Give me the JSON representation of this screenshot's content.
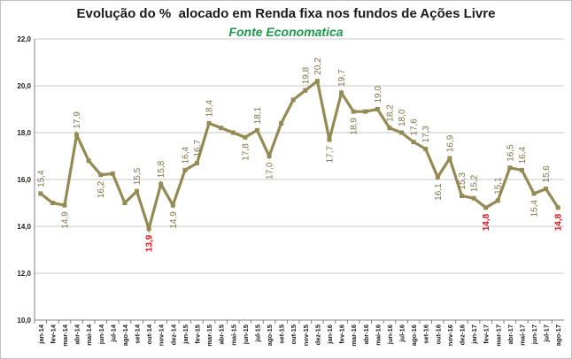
{
  "chart_data": {
    "type": "line",
    "title": "Evolução do %  alocado em Renda fixa nos fundos de Ações Livre",
    "subtitle": "Fonte Economatica",
    "xlabel": "",
    "ylabel": "",
    "ylim": [
      10,
      22
    ],
    "y_ticks": [
      "10,0",
      "12,0",
      "14,0",
      "16,0",
      "18,0",
      "20,0",
      "22,0"
    ],
    "grid": true,
    "legend": "none",
    "line_color": "#948a54",
    "label_color": "#7f7346",
    "highlight_color": "#e8101a",
    "categories": [
      "jan-14",
      "fev-14",
      "mar-14",
      "abr-14",
      "mai-14",
      "jun-14",
      "jul-14",
      "ago-14",
      "set-14",
      "out-14",
      "nov-14",
      "dez-14",
      "jan-15",
      "fev-15",
      "mar-15",
      "abr-15",
      "mai-15",
      "jun-15",
      "jul-15",
      "ago-15",
      "set-15",
      "out-15",
      "nov-15",
      "dez-15",
      "jan-16",
      "fev-16",
      "mar-16",
      "abr-16",
      "mai-16",
      "jun-16",
      "jul-16",
      "ago-16",
      "set-16",
      "out-16",
      "nov-16",
      "dez-16",
      "jan-17",
      "fev-17",
      "mar-17",
      "abr-17",
      "mai-17",
      "jun-17",
      "jul-17",
      "ago-17"
    ],
    "values": [
      15.4,
      15.0,
      14.9,
      17.9,
      16.8,
      16.2,
      16.25,
      15.0,
      15.5,
      13.9,
      15.8,
      14.9,
      16.4,
      16.7,
      18.4,
      18.2,
      18.0,
      17.8,
      18.1,
      17.0,
      18.4,
      19.4,
      19.8,
      20.2,
      17.7,
      19.7,
      18.9,
      18.9,
      19.0,
      18.2,
      18.0,
      17.6,
      17.3,
      16.1,
      16.9,
      15.3,
      15.2,
      14.8,
      15.1,
      16.5,
      16.4,
      15.4,
      15.6,
      14.8
    ],
    "data_labels": [
      {
        "index": 0,
        "text": "15,4",
        "highlight": false
      },
      {
        "index": 2,
        "text": "14,9",
        "highlight": false
      },
      {
        "index": 3,
        "text": "17,9",
        "highlight": false
      },
      {
        "index": 5,
        "text": "16,2",
        "highlight": false
      },
      {
        "index": 8,
        "text": "15,5",
        "highlight": false
      },
      {
        "index": 9,
        "text": "13,9",
        "highlight": true
      },
      {
        "index": 10,
        "text": "15,8",
        "highlight": false
      },
      {
        "index": 11,
        "text": "14,9",
        "highlight": false
      },
      {
        "index": 12,
        "text": "16,4",
        "highlight": false
      },
      {
        "index": 13,
        "text": "16,7",
        "highlight": false
      },
      {
        "index": 14,
        "text": "18,4",
        "highlight": false
      },
      {
        "index": 17,
        "text": "17,8",
        "highlight": false
      },
      {
        "index": 18,
        "text": "18,1",
        "highlight": false
      },
      {
        "index": 19,
        "text": "17,0",
        "highlight": false
      },
      {
        "index": 22,
        "text": "19,8",
        "highlight": false
      },
      {
        "index": 23,
        "text": "20,2",
        "highlight": false
      },
      {
        "index": 24,
        "text": "17,7",
        "highlight": false
      },
      {
        "index": 25,
        "text": "19,7",
        "highlight": false
      },
      {
        "index": 26,
        "text": "18,9",
        "highlight": false
      },
      {
        "index": 28,
        "text": "19,0",
        "highlight": false
      },
      {
        "index": 29,
        "text": "18,2",
        "highlight": false
      },
      {
        "index": 30,
        "text": "18,0",
        "highlight": false
      },
      {
        "index": 31,
        "text": "17,6",
        "highlight": false
      },
      {
        "index": 32,
        "text": "17,3",
        "highlight": false
      },
      {
        "index": 33,
        "text": "16,1",
        "highlight": false
      },
      {
        "index": 34,
        "text": "16,9",
        "highlight": false
      },
      {
        "index": 35,
        "text": "15,3",
        "highlight": false
      },
      {
        "index": 36,
        "text": "15,2",
        "highlight": false
      },
      {
        "index": 37,
        "text": "14,8",
        "highlight": true
      },
      {
        "index": 38,
        "text": "15,1",
        "highlight": false
      },
      {
        "index": 39,
        "text": "16,5",
        "highlight": false
      },
      {
        "index": 40,
        "text": "16,4",
        "highlight": false
      },
      {
        "index": 41,
        "text": "15,4",
        "highlight": false
      },
      {
        "index": 42,
        "text": "15,6",
        "highlight": false
      },
      {
        "index": 43,
        "text": "14,8",
        "highlight": true
      }
    ]
  }
}
